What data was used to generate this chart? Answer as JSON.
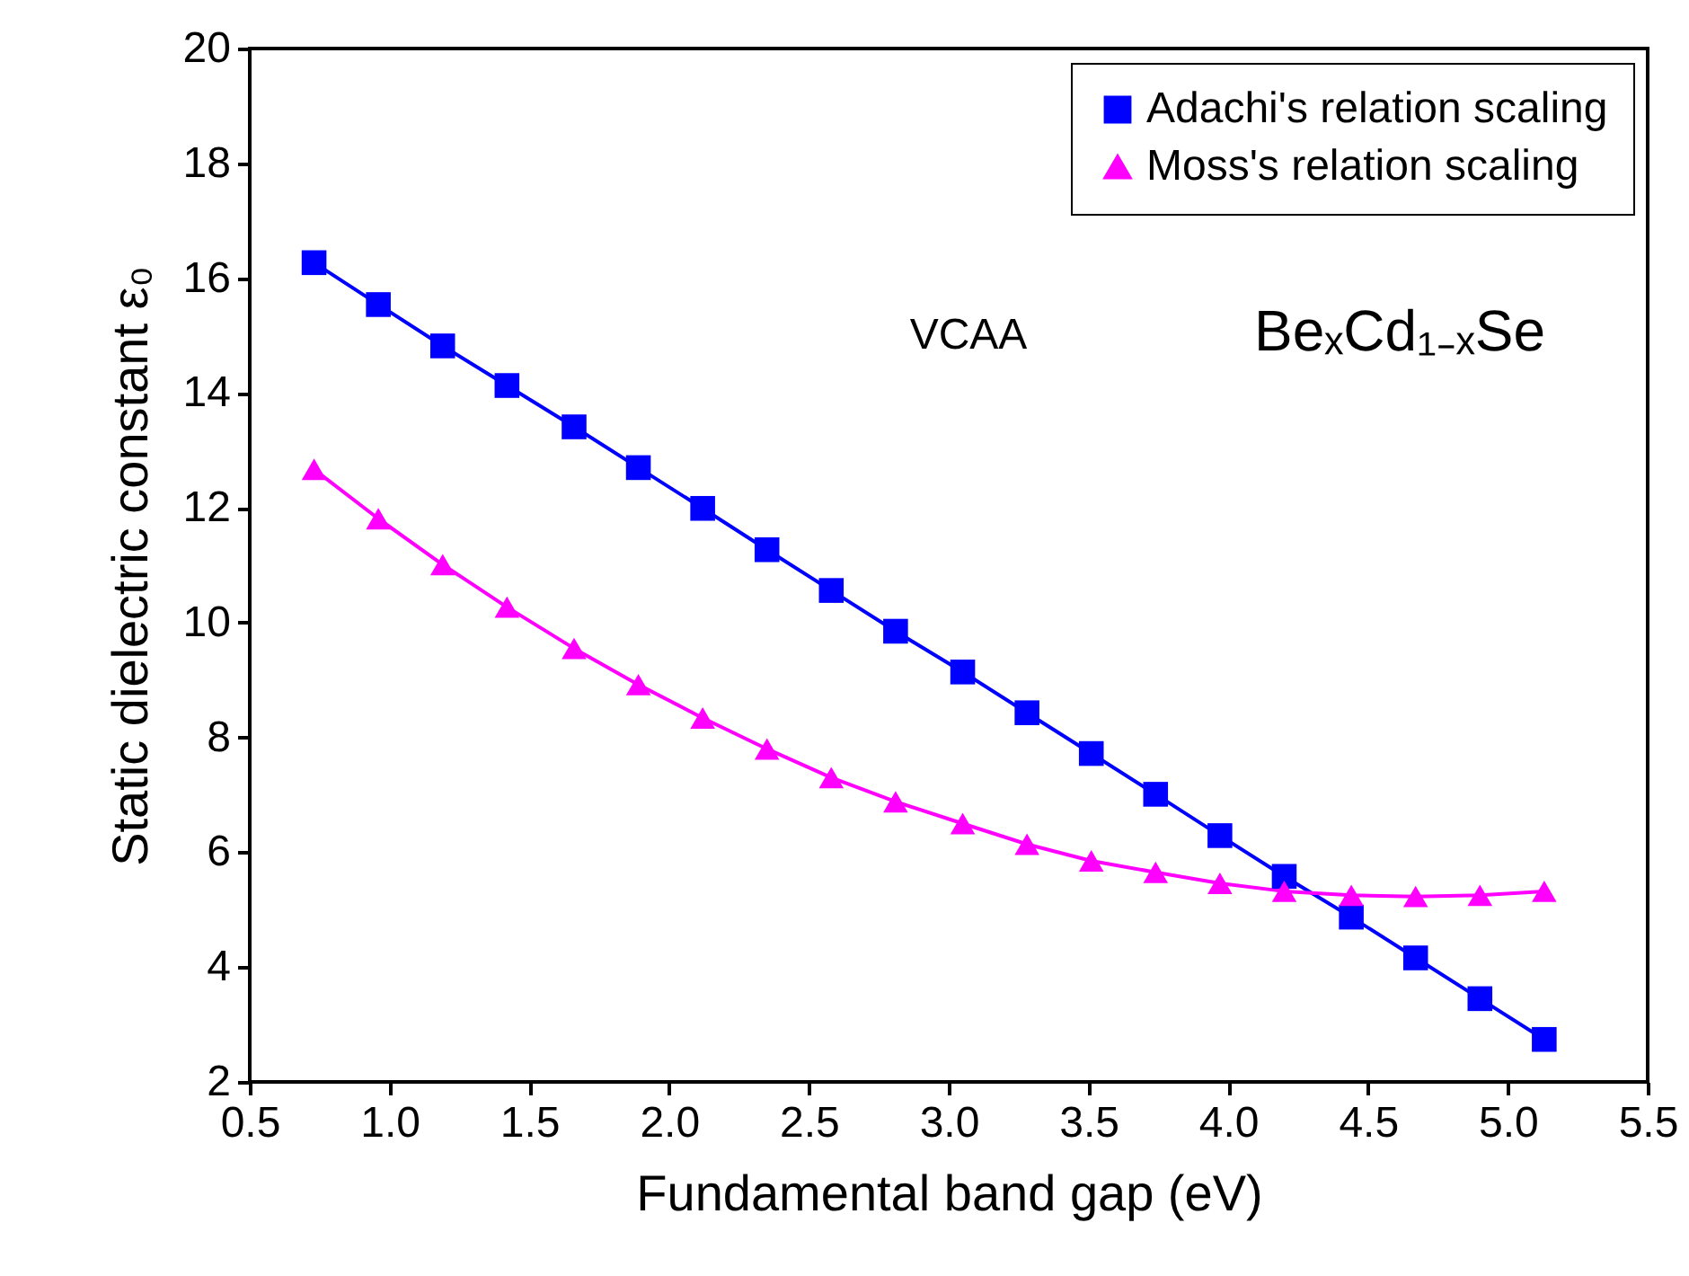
{
  "chart_data": {
    "type": "line",
    "xlabel": "Fundamental band gap (eV)",
    "ylabel": "Static dielectric constant ε₀",
    "x": [
      0.73,
      0.96,
      1.19,
      1.42,
      1.66,
      1.89,
      2.12,
      2.35,
      2.58,
      2.81,
      3.05,
      3.28,
      3.51,
      3.74,
      3.97,
      4.2,
      4.44,
      4.67,
      4.9,
      5.13
    ],
    "series": [
      {
        "name": "Adachi's relation scaling",
        "color": "#0000ff",
        "marker": "square",
        "values": [
          16.27,
          15.54,
          14.82,
          14.13,
          13.41,
          12.7,
          11.99,
          11.27,
          10.56,
          9.85,
          9.14,
          8.43,
          7.72,
          7.01,
          6.29,
          5.58,
          4.87,
          4.16,
          3.45,
          2.74
        ]
      },
      {
        "name": "Moss's relation scaling",
        "color": "#ff00ff",
        "marker": "triangle",
        "values": [
          12.67,
          11.81,
          11.01,
          10.27,
          9.55,
          8.92,
          8.34,
          7.8,
          7.3,
          6.88,
          6.5,
          6.14,
          5.85,
          5.65,
          5.46,
          5.32,
          5.25,
          5.23,
          5.25,
          5.32
        ]
      }
    ],
    "xlim": [
      0.5,
      5.5
    ],
    "xticks": [
      0.5,
      {
        "value": 1,
        "label": "1.0"
      },
      1.5,
      {
        "value": 2,
        "label": "2.0"
      },
      2.5,
      {
        "value": 3,
        "label": "3.0"
      },
      3.5,
      {
        "value": 4,
        "label": "4.0"
      },
      4.5,
      {
        "value": 5,
        "label": "5.0"
      },
      5.5
    ],
    "ylim": [
      2,
      20
    ],
    "yticks": [
      2,
      4,
      6,
      8,
      10,
      12,
      14,
      16,
      18,
      20
    ],
    "annotations": [
      "VCAA",
      "BeₓCd₁₋ₓSe"
    ],
    "legend": "top right",
    "grid": false,
    "line_style": "solid"
  }
}
